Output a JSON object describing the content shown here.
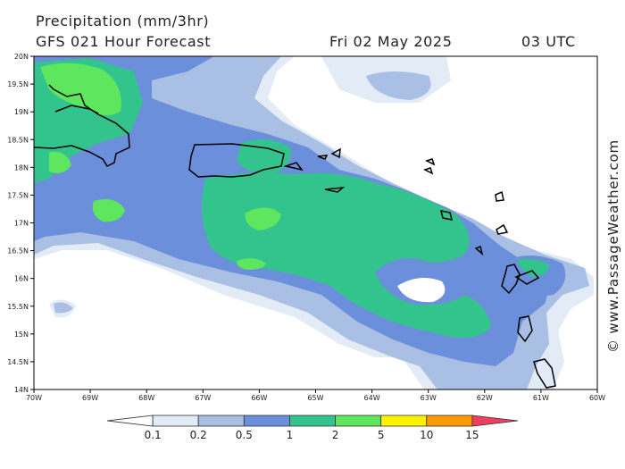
{
  "header": {
    "title": "Precipitation (mm/3hr)",
    "subtitle": "GFS 021 Hour Forecast",
    "date": "Fri 02 May 2025",
    "time": "03 UTC"
  },
  "credit": "© www.PassageWeather.com",
  "map": {
    "lat_range": [
      14,
      20
    ],
    "lon_range": [
      -70,
      -60
    ],
    "lat_labels": [
      "20N",
      "19.5N",
      "19N",
      "18.5N",
      "18N",
      "17.5N",
      "17N",
      "16.5N",
      "16N",
      "15.5N",
      "15N",
      "14.5N",
      "14N"
    ],
    "lon_labels": [
      "70W",
      "69W",
      "68W",
      "67W",
      "66W",
      "65W",
      "64W",
      "63W",
      "62W",
      "61W",
      "60W"
    ]
  },
  "legend": {
    "colors": [
      "#ffffff",
      "#e2ebf6",
      "#a9bfe3",
      "#6b8fdb",
      "#33c48e",
      "#5ee65e",
      "#fff200",
      "#ff9900",
      "#ee3f5f"
    ],
    "labels": [
      "0.1",
      "0.2",
      "0.5",
      "1",
      "2",
      "5",
      "10",
      "15"
    ]
  }
}
